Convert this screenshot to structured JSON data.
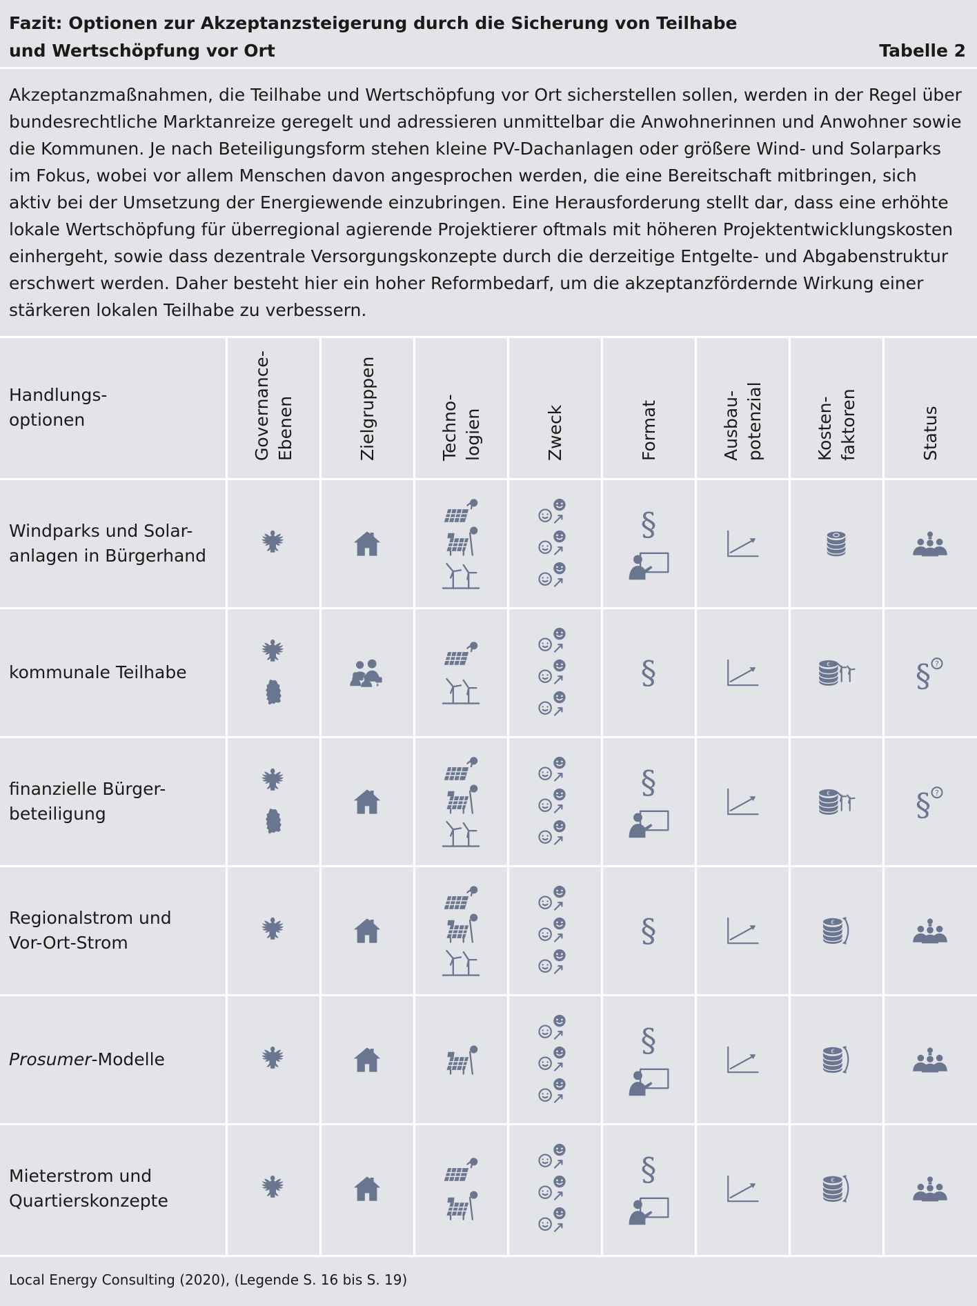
{
  "title_line1": "Fazit: Optionen zur Akzeptanzsteigerung durch die Sicherung von Teilhabe",
  "title_line2": "und Wertschöpfung vor Ort",
  "table_number": "Tabelle 2",
  "intro_lines": [
    "Akzeptanzmaßnahmen, die Teilhabe und Wertschöpfung vor Ort sicherstellen sollen, werden in der Regel über",
    "bundesrechtliche Marktanreize geregelt und adressieren unmittelbar die Anwohnerinnen und Anwohner sowie",
    "die Kommunen. Je nach Beteiligungsform stehen kleine PV-Dachanlagen oder größere Wind- und Solarparks",
    "im Fokus, wobei vor allem Menschen davon angesprochen werden, die eine Bereitschaft mitbringen, sich",
    "aktiv bei der Umsetzung der Energiewende einzubringen. Eine Herausforderung stellt dar, dass eine erhöhte",
    "lokale Wertschöpfung für überregional agierende Projektierer oftmals mit höheren Projektentwicklungskosten",
    "einhergeht, sowie dass dezentrale Versorgungskonzepte durch die derzeitige Entgelte- und Abgabenstruktur",
    "erschwert werden. Daher besteht hier ein hoher Reformbedarf, um die akzeptanzfördernde Wirkung einer",
    "stärkeren lokalen Teilhabe zu verbessern."
  ],
  "header_first_line1": "Handlungs-",
  "header_first_line2": "optionen",
  "columns": [
    {
      "l1": "Governance-",
      "l2": "Ebenen"
    },
    {
      "l1": "Zielgruppen",
      "l2": ""
    },
    {
      "l1": "Techno-",
      "l2": "logien"
    },
    {
      "l1": "Zweck",
      "l2": ""
    },
    {
      "l1": "Format",
      "l2": ""
    },
    {
      "l1": "Ausbau-",
      "l2": "potenzial"
    },
    {
      "l1": "Kosten-",
      "l2": "faktoren"
    },
    {
      "l1": "Status",
      "l2": ""
    }
  ],
  "rows": [
    {
      "l1": "Windparks und Solar-",
      "l2": "anlagen in Bürgerhand",
      "italic": "",
      "gov": [
        "eagle-icon"
      ],
      "ziel": [
        "house-icon"
      ],
      "tech": [
        "solar-panel-icon",
        "solar-field-icon",
        "wind-turbine-icon"
      ],
      "zweck": [
        "smiley-icon",
        "smiley-icon",
        "smiley-icon"
      ],
      "format": [
        "paragraph-icon",
        "presentation-icon"
      ],
      "ausbau": [
        "growth-chart-icon"
      ],
      "kosten": [
        "coin-stack-icon"
      ],
      "status": [
        "group-idea-icon"
      ]
    },
    {
      "l1": "kommunale Teilhabe",
      "l2": "",
      "italic": "",
      "gov": [
        "eagle-icon",
        "germany-map-icon"
      ],
      "ziel": [
        "people-group-icon"
      ],
      "tech": [
        "solar-panel-icon",
        "wind-turbine-icon"
      ],
      "zweck": [
        "smiley-icon",
        "smiley-icon",
        "smiley-icon"
      ],
      "format": [
        "paragraph-icon"
      ],
      "ausbau": [
        "growth-chart-icon"
      ],
      "kosten": [
        "euro-coins-wind-icon"
      ],
      "status": [
        "paragraph-question-icon"
      ]
    },
    {
      "l1": "finanzielle Bürger-",
      "l2": "beteiligung",
      "italic": "",
      "gov": [
        "eagle-icon",
        "germany-map-icon"
      ],
      "ziel": [
        "house-icon"
      ],
      "tech": [
        "solar-panel-icon",
        "solar-field-icon",
        "wind-turbine-icon"
      ],
      "zweck": [
        "smiley-icon",
        "smiley-icon",
        "smiley-icon"
      ],
      "format": [
        "paragraph-icon",
        "presentation-icon"
      ],
      "ausbau": [
        "growth-chart-icon"
      ],
      "kosten": [
        "euro-coins-wind-icon"
      ],
      "status": [
        "paragraph-question-icon"
      ]
    },
    {
      "l1": "Regionalstrom und",
      "l2": "Vor-Ort-Strom",
      "italic": "",
      "gov": [
        "eagle-icon"
      ],
      "ziel": [
        "house-icon"
      ],
      "tech": [
        "solar-panel-icon",
        "solar-field-icon",
        "wind-turbine-icon"
      ],
      "zweck": [
        "smiley-icon",
        "smiley-icon",
        "smiley-icon"
      ],
      "format": [
        "paragraph-icon"
      ],
      "ausbau": [
        "growth-chart-icon"
      ],
      "kosten": [
        "euro-coins-cycle-icon"
      ],
      "status": [
        "group-idea-icon"
      ]
    },
    {
      "l1": "",
      "l2": "",
      "italic": "Prosumer",
      "rest": "-Modelle",
      "gov": [
        "eagle-icon"
      ],
      "ziel": [
        "house-icon"
      ],
      "tech": [
        "solar-field-icon"
      ],
      "zweck": [
        "smiley-icon",
        "smiley-icon",
        "smiley-icon"
      ],
      "format": [
        "paragraph-icon",
        "presentation-icon"
      ],
      "ausbau": [
        "growth-chart-icon"
      ],
      "kosten": [
        "euro-coins-cycle-icon"
      ],
      "status": [
        "group-idea-icon"
      ]
    },
    {
      "l1": "Mieterstrom und",
      "l2": "Quartierskonzepte",
      "italic": "",
      "gov": [
        "eagle-icon"
      ],
      "ziel": [
        "house-icon"
      ],
      "tech": [
        "solar-panel-icon",
        "solar-field-icon"
      ],
      "zweck": [
        "smiley-icon",
        "smiley-icon",
        "smiley-icon"
      ],
      "format": [
        "paragraph-icon",
        "presentation-icon"
      ],
      "ausbau": [
        "growth-chart-icon"
      ],
      "kosten": [
        "euro-coins-cycle-icon"
      ],
      "status": [
        "group-idea-icon"
      ]
    }
  ],
  "footer": "Local Energy Consulting (2020), (Legende S. 16 bis S. 19)",
  "colors": {
    "background": "#e3e4e8",
    "icon": "#6a7590",
    "grid": "#ffffff"
  }
}
